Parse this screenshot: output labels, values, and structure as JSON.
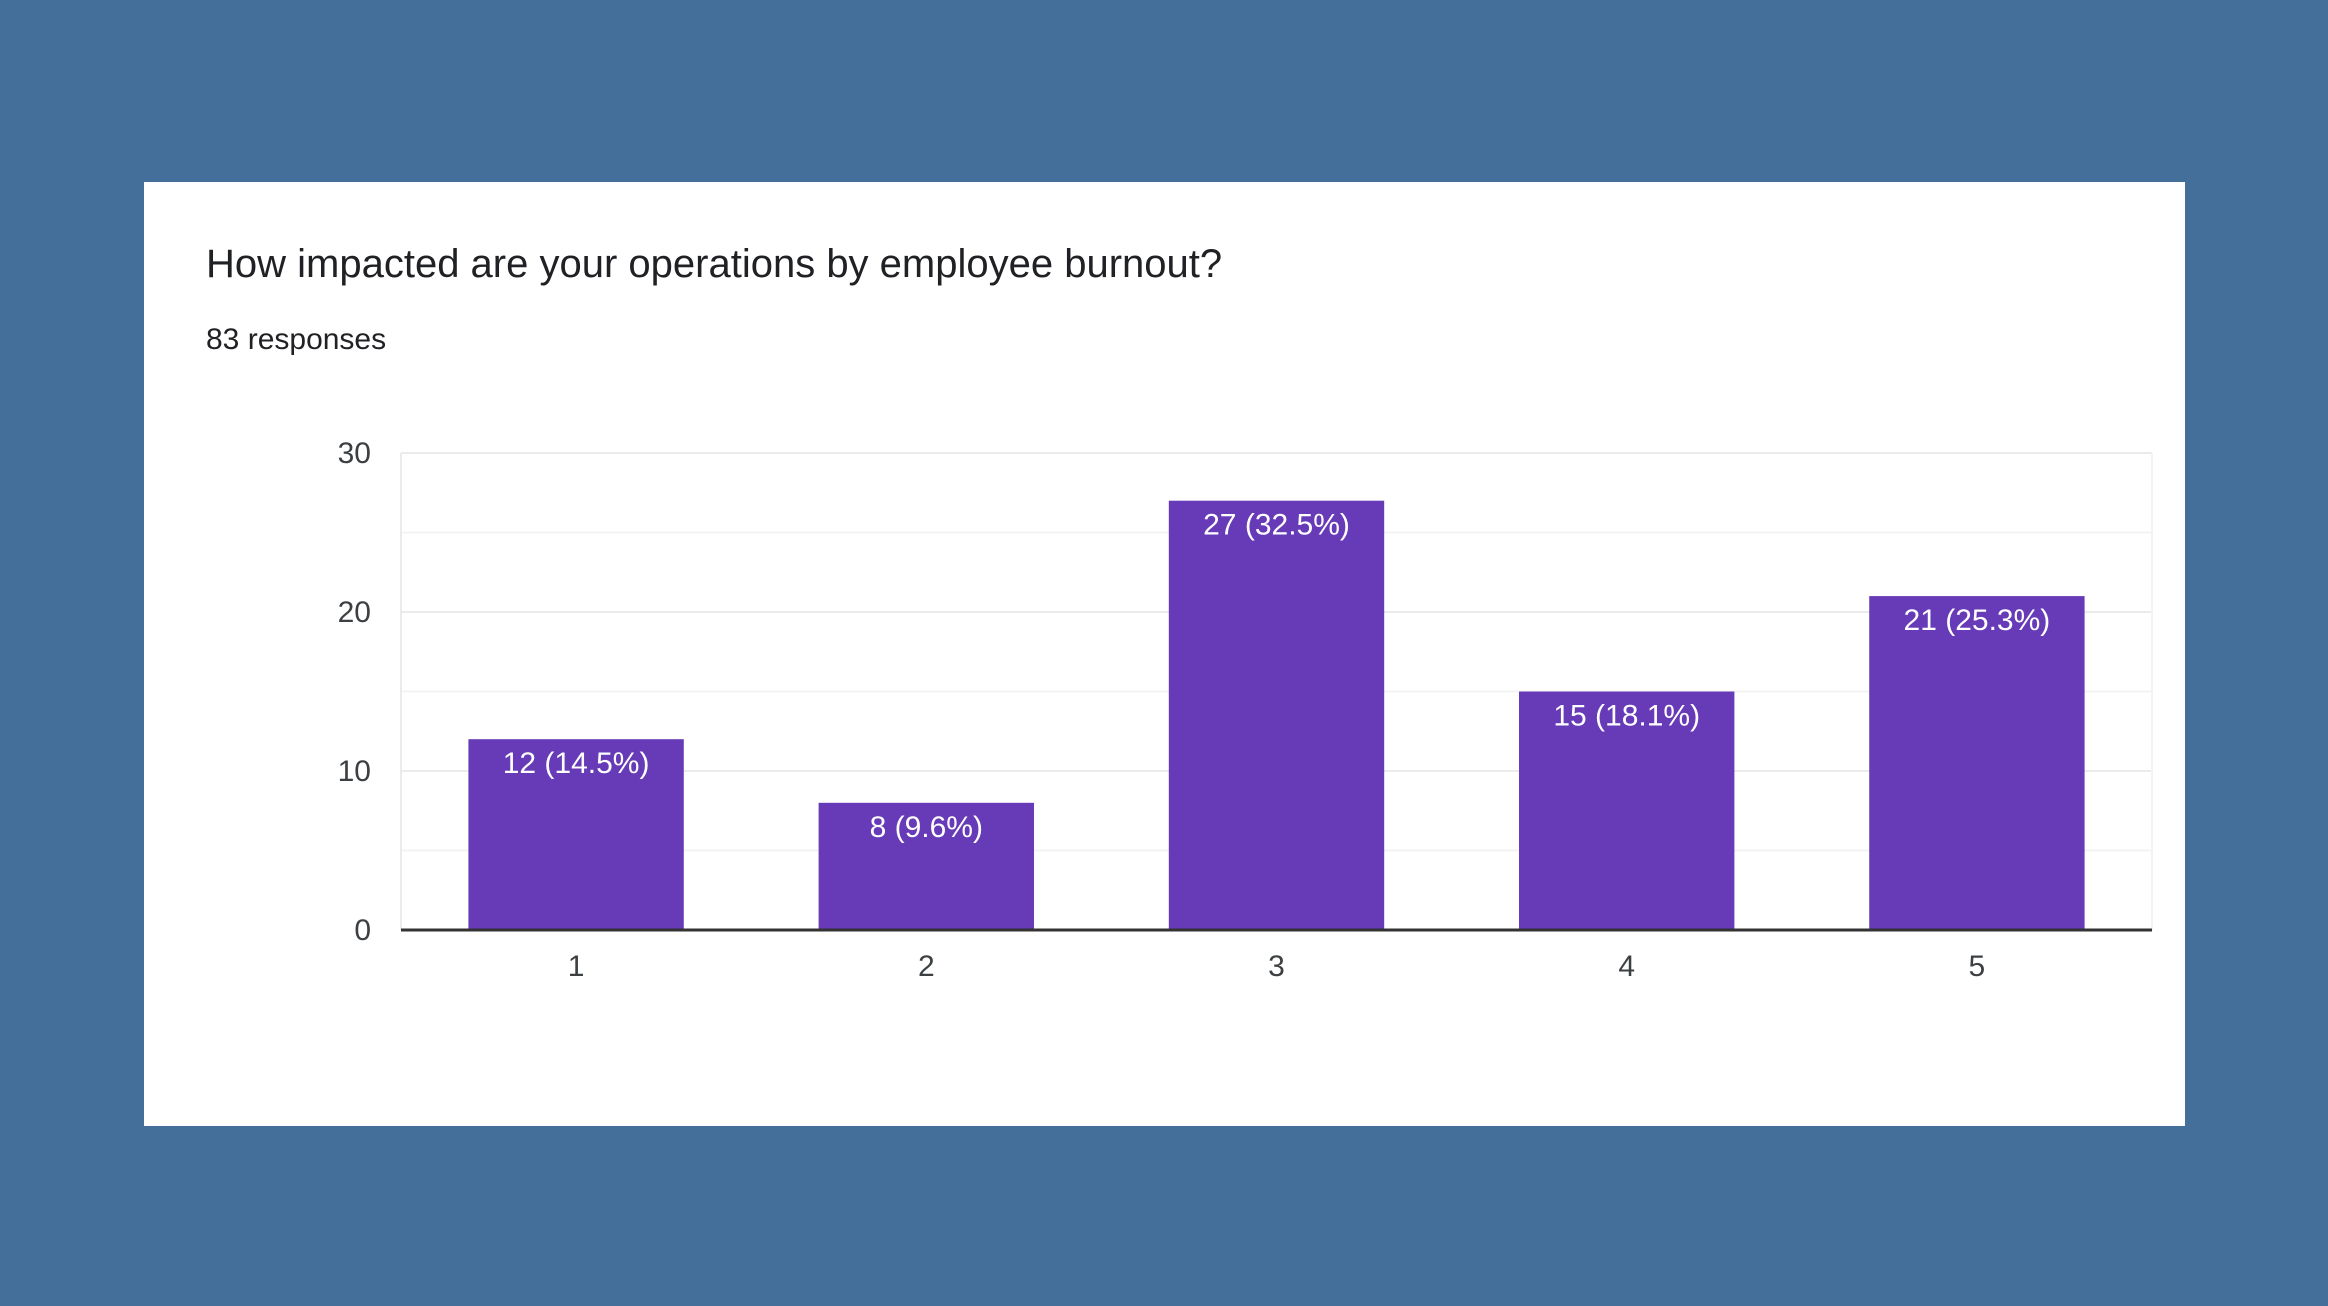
{
  "colors": {
    "background": "#436f9a",
    "card": "#ffffff",
    "bar": "#673ab7",
    "grid": "#ebebeb",
    "axis": "#333333"
  },
  "question": {
    "title": "How impacted are your operations by employee burnout?",
    "responses": "83 responses"
  },
  "chart_data": {
    "type": "bar",
    "categories": [
      "1",
      "2",
      "3",
      "4",
      "5"
    ],
    "values": [
      12,
      8,
      27,
      15,
      21
    ],
    "data_labels": [
      "12 (14.5%)",
      "8 (9.6%)",
      "27 (32.5%)",
      "15 (18.1%)",
      "21 (25.3%)"
    ],
    "y_ticks": [
      "0",
      "10",
      "20",
      "30"
    ],
    "ylim": [
      0,
      30
    ],
    "minor_gridlines": true,
    "legend": "none"
  }
}
